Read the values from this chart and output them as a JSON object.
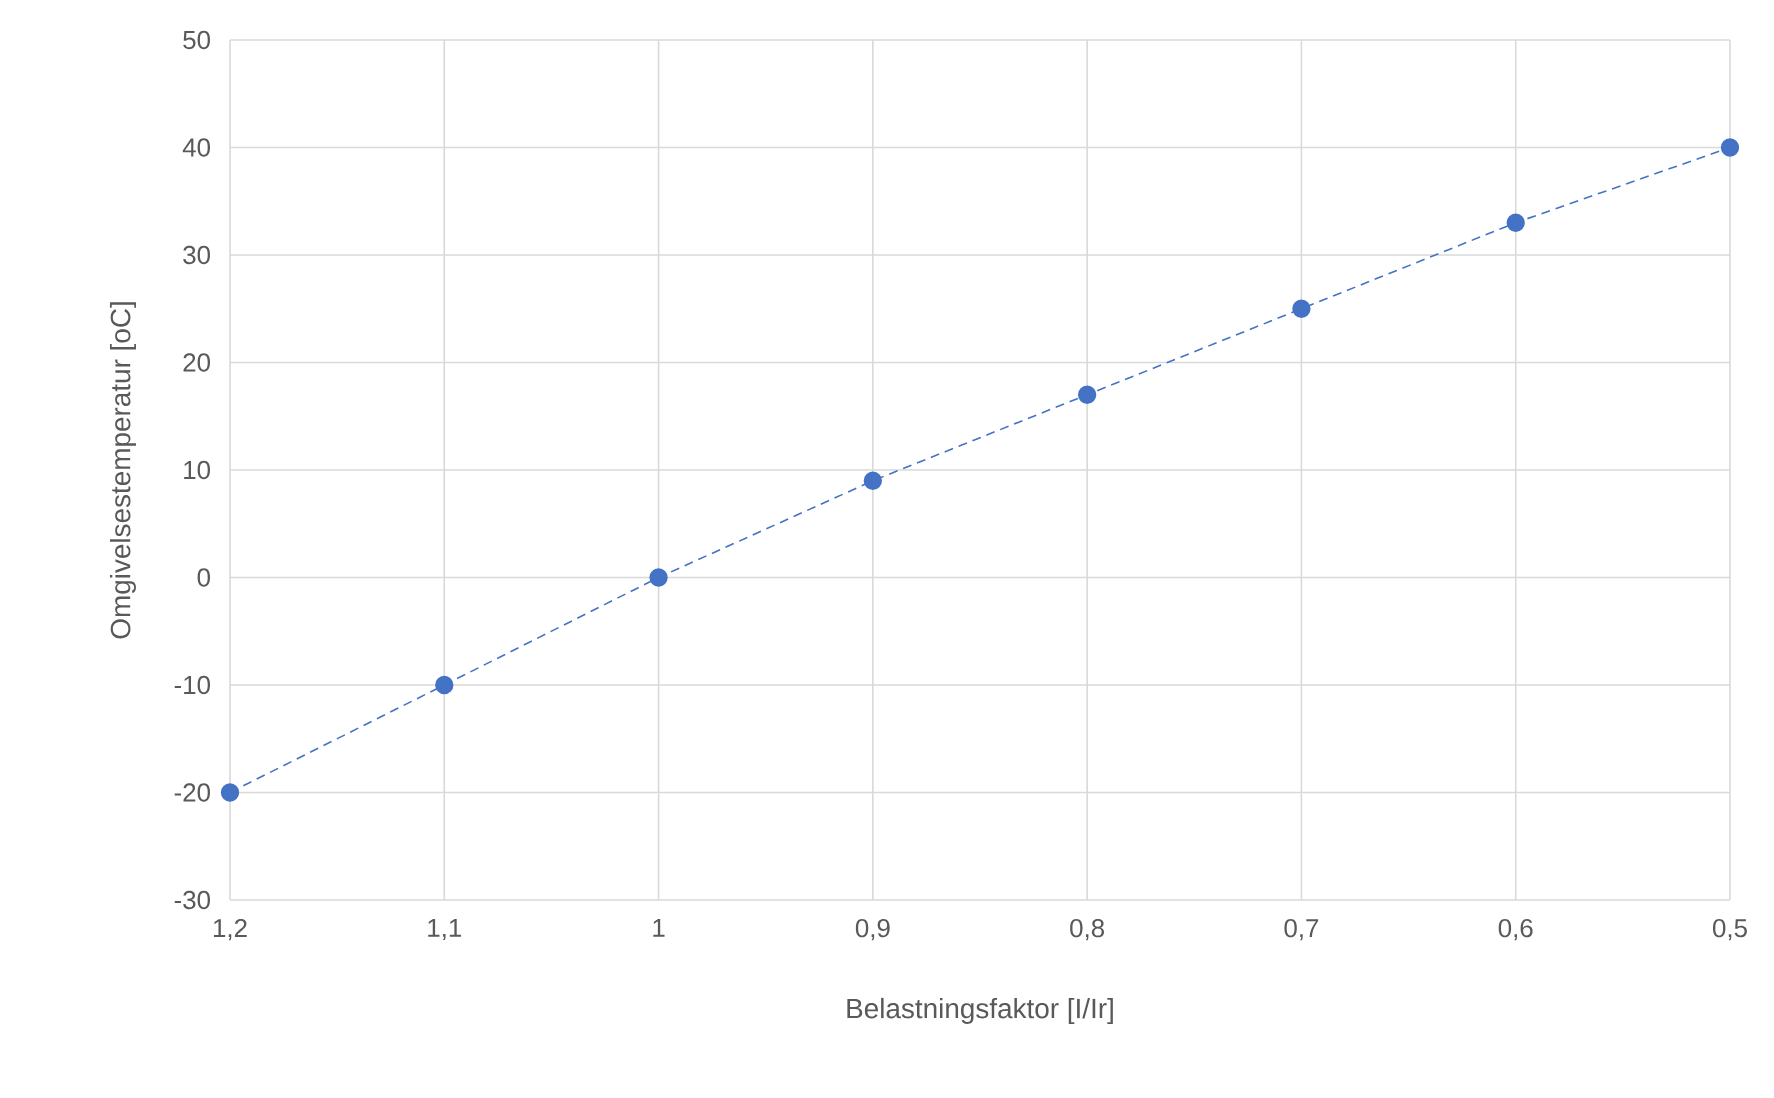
{
  "chart_data": {
    "type": "line",
    "xlabel": "Belastningsfaktor [I/Ir]",
    "ylabel": "Omgivelsestemperatur [oC]",
    "x": [
      1.2,
      1.1,
      1.0,
      0.9,
      0.8,
      0.7,
      0.6,
      0.5
    ],
    "series": [
      {
        "color": "#4472c4",
        "values": [
          -20,
          -10,
          0,
          9,
          17,
          25,
          33,
          40
        ]
      }
    ],
    "xlim": [
      1.2,
      0.5
    ],
    "xticks": [
      {
        "value": 1.2,
        "label": "1,2"
      },
      {
        "value": 1.1,
        "label": "1,1"
      },
      1,
      {
        "value": 0.9,
        "label": "0,9"
      },
      {
        "value": 0.8,
        "label": "0,8"
      },
      {
        "value": 0.7,
        "label": "0,7"
      },
      {
        "value": 0.6,
        "label": "0,6"
      },
      {
        "value": 0.5,
        "label": "0,5"
      }
    ],
    "ylim": [
      -30,
      50
    ],
    "yticks": [
      -30,
      -20,
      -10,
      0,
      10,
      20,
      30,
      40,
      50
    ],
    "grid": true,
    "marker": "circle",
    "line_style": "dashed"
  }
}
